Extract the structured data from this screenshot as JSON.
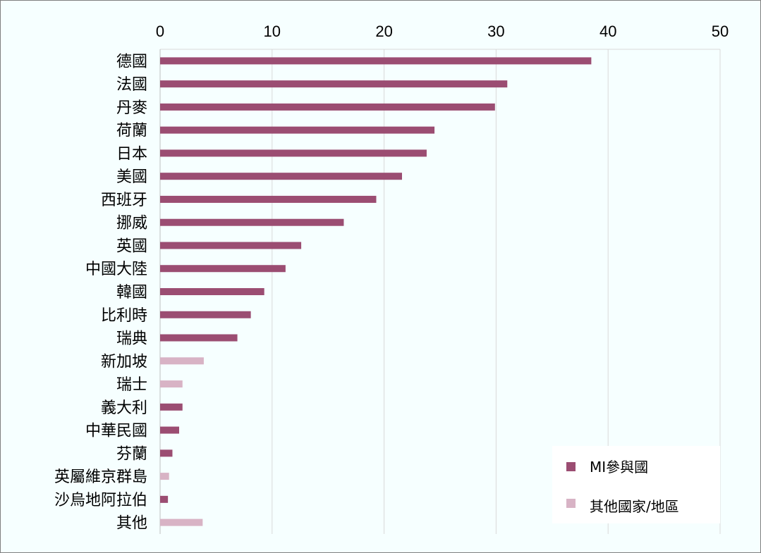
{
  "chart_data": {
    "type": "bar",
    "orientation": "horizontal",
    "title": "",
    "xlabel": "",
    "ylabel": "",
    "xlim": [
      0,
      50
    ],
    "xticks": [
      0,
      10,
      20,
      30,
      40,
      50
    ],
    "grid": true,
    "legend_position": "bottom-right",
    "categories": [
      "德國",
      "法國",
      "丹麥",
      "荷蘭",
      "日本",
      "美國",
      "西班牙",
      "挪威",
      "英國",
      "中國大陸",
      "韓國",
      "比利時",
      "瑞典",
      "新加坡",
      "瑞士",
      "義大利",
      "中華民國",
      "芬蘭",
      "英屬維京群島",
      "沙烏地阿拉伯",
      "其他"
    ],
    "values": [
      38.5,
      31,
      29.9,
      24.5,
      23.8,
      21.6,
      19.3,
      16.4,
      12.6,
      11.2,
      9.3,
      8.1,
      6.9,
      3.9,
      2.0,
      2.0,
      1.7,
      1.1,
      0.8,
      0.7,
      3.8
    ],
    "groups": [
      "MI",
      "MI",
      "MI",
      "MI",
      "MI",
      "MI",
      "MI",
      "MI",
      "MI",
      "MI",
      "MI",
      "MI",
      "MI",
      "other",
      "other",
      "MI",
      "MI",
      "MI",
      "other",
      "MI",
      "other"
    ],
    "series": [
      {
        "key": "MI",
        "name": "MI參與國",
        "color": "#9b4d72"
      },
      {
        "key": "other",
        "name": "其他國家/地區",
        "color": "#d8b3c5"
      }
    ]
  }
}
